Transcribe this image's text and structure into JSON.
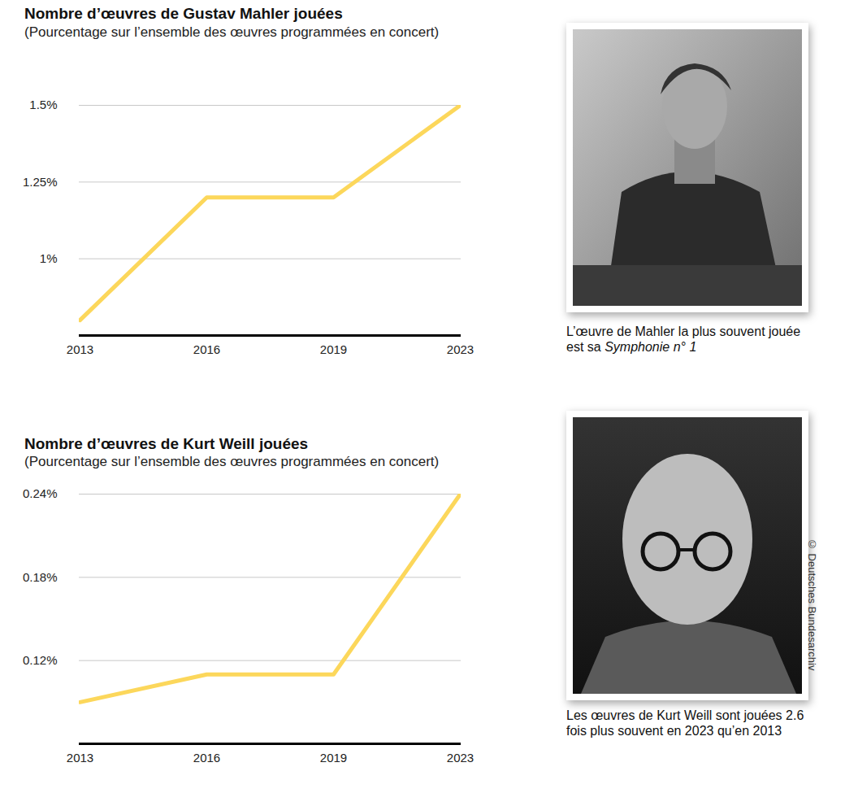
{
  "chart_data": [
    {
      "type": "line",
      "title": "Nombre d’œuvres de Gustav Mahler jouées",
      "subtitle": "(Pourcentage sur l’ensemble des œuvres programmées en concert)",
      "categories": [
        "2013",
        "2016",
        "2019",
        "2023"
      ],
      "values": [
        0.8,
        1.2,
        1.2,
        1.5
      ],
      "color": "#fcd75b",
      "ylim": [
        0.75,
        1.5
      ],
      "yticks": [
        {
          "value": 1,
          "label": "1%"
        },
        {
          "value": 1.25,
          "label": "1.25%"
        },
        {
          "value": 1.5,
          "label": "1.5%"
        }
      ],
      "grid": true,
      "annotation": [
        "L’œuvre de Mahler la plus souvent jouée est sa ",
        "Symphonie n° 1"
      ]
    },
    {
      "type": "line",
      "title": "Nombre d’œuvres de Kurt Weill jouées",
      "subtitle": "(Pourcentage sur l’ensemble des œuvres programmées en concert)",
      "categories": [
        "2013",
        "2016",
        "2019",
        "2023"
      ],
      "values": [
        0.09,
        0.11,
        0.11,
        0.24
      ],
      "color": "#fcd75b",
      "ylim": [
        0.06,
        0.24
      ],
      "yticks": [
        {
          "value": 0.12,
          "label": "0.12%"
        },
        {
          "value": 0.18,
          "label": "0.18%"
        },
        {
          "value": 0.24,
          "label": "0.24%"
        }
      ],
      "grid": true,
      "annotation": [
        "Les œuvres de Kurt Weill sont jouées 2.6 fois plus souvent en 2023 qu’en 2013"
      ],
      "credit": "© Deutsches Bundesarchiv"
    }
  ]
}
